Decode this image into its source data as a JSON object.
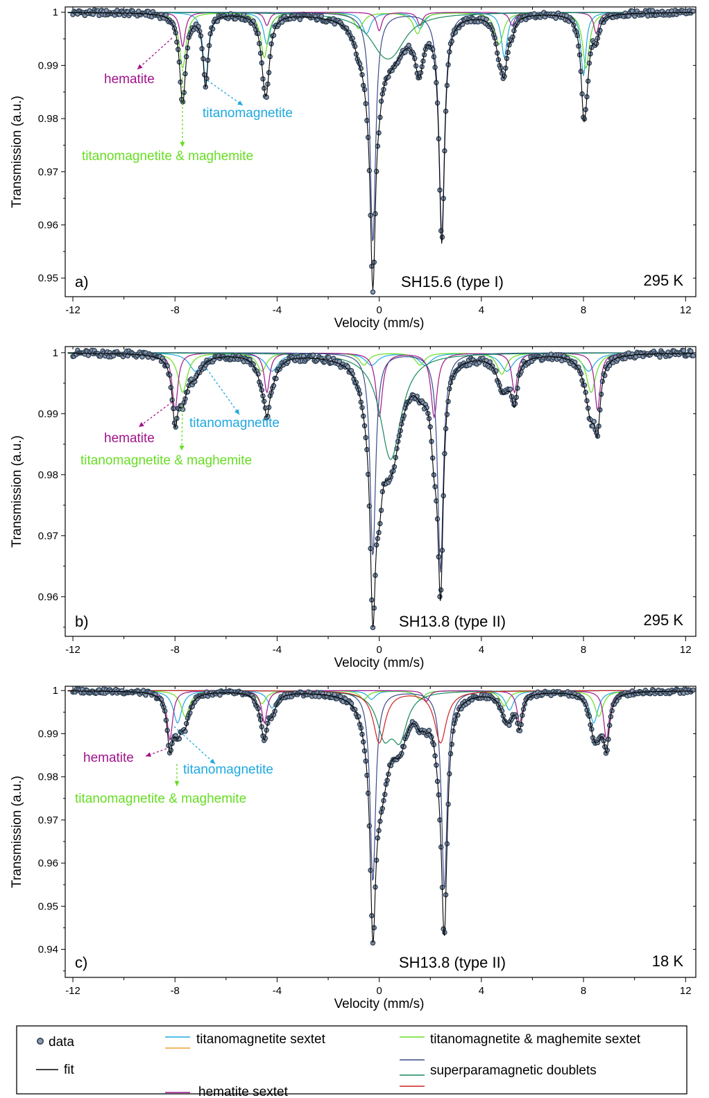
{
  "colors": {
    "data": "#2c3e50",
    "fit": "#000000",
    "titanomagnetite": "#1fa8e0",
    "titanomagnetite_alt": "#f0a030",
    "titanomaghemite": "#66dd22",
    "hematite": "#a0148c",
    "sp_blue": "#3a4a8a",
    "sp_green": "#168a5a",
    "sp_red": "#cc2020"
  },
  "legend": {
    "data": "data",
    "fit": "fit",
    "titanomagnetite": "titanomagnetite sextet",
    "titanomaghemite": "titanomagnetite & maghemite sextet",
    "hematite": "hematite sextet",
    "superparamagnetic": "superparamagnetic doublets"
  },
  "chart_data": [
    {
      "type": "line",
      "panel_label": "a)",
      "sample": "SH15.6 (type I)",
      "temperature": "295 K",
      "xlabel": "Velocity (mm/s)",
      "ylabel": "Transmission (a.u.)",
      "xlim": [
        -12.3,
        12.4
      ],
      "ylim": [
        0.9465,
        1.001
      ],
      "xticks": [
        -12,
        -8,
        -4,
        0,
        4,
        8,
        12
      ],
      "yticks": [
        1,
        0.99,
        0.98,
        0.97,
        0.96,
        0.95
      ],
      "ytick_labels": [
        "1",
        "0.99",
        "0.98",
        "0.97",
        "0.96",
        "0.95"
      ],
      "annotations": [
        {
          "text": "hematite",
          "color_key": "hematite"
        },
        {
          "text": "titanomagnetite",
          "color_key": "titanomagnetite"
        },
        {
          "text": "titanomagnetite & maghemite",
          "color_key": "titanomaghemite"
        }
      ],
      "components": [
        {
          "color_key": "titanomagnetite",
          "lines": [
            [
              -6.8,
              0.0135,
              0.12
            ],
            [
              -4.4,
              0.006,
              0.16
            ],
            [
              -0.5,
              0.004,
              0.2
            ],
            [
              1.6,
              0.003,
              0.2
            ],
            [
              4.9,
              0.0085,
              0.14
            ],
            [
              8.0,
              0.012,
              0.12
            ]
          ]
        },
        {
          "color_key": "titanomaghemite",
          "lines": [
            [
              -7.7,
              0.0105,
              0.16
            ],
            [
              -4.5,
              0.0085,
              0.17
            ],
            [
              -0.8,
              0.003,
              0.22
            ],
            [
              1.5,
              0.004,
              0.2
            ],
            [
              4.7,
              0.006,
              0.2
            ],
            [
              8.1,
              0.0105,
              0.16
            ]
          ]
        },
        {
          "color_key": "hematite",
          "lines": [
            [
              -7.7,
              0.0065,
              0.12
            ],
            [
              -4.4,
              0.0025,
              0.12
            ],
            [
              0.0,
              0.0035,
              0.12
            ],
            [
              1.6,
              0.0025,
              0.12
            ],
            [
              5.2,
              0.0025,
              0.12
            ],
            [
              8.5,
              0.004,
              0.12
            ]
          ]
        },
        {
          "color_key": "sp_blue",
          "lines": [
            [
              -0.25,
              0.0435,
              0.13
            ],
            [
              2.45,
              0.042,
              0.13
            ]
          ]
        },
        {
          "color_key": "sp_green",
          "lines": [
            [
              0.2,
              0.0065,
              0.75
            ],
            [
              0.6,
              0.003,
              0.6
            ]
          ]
        }
      ]
    },
    {
      "type": "line",
      "panel_label": "b)",
      "sample": "SH13.8 (type II)",
      "temperature": "295 K",
      "xlabel": "Velocity (mm/s)",
      "ylabel": "Transmission (a.u.)",
      "xlim": [
        -12.3,
        12.4
      ],
      "ylim": [
        0.9535,
        1.001
      ],
      "xticks": [
        -12,
        -8,
        -4,
        0,
        4,
        8,
        12
      ],
      "yticks": [
        1,
        0.99,
        0.98,
        0.97,
        0.96
      ],
      "ytick_labels": [
        "1",
        "0.99",
        "0.98",
        "0.97",
        "0.96"
      ],
      "annotations": [
        {
          "text": "hematite",
          "color_key": "hematite"
        },
        {
          "text": "titanomagnetite",
          "color_key": "titanomagnetite"
        },
        {
          "text": "titanomagnetite & maghemite",
          "color_key": "titanomaghemite"
        }
      ],
      "components": [
        {
          "color_key": "titanomagnetite",
          "lines": [
            [
              -7.2,
              0.003,
              0.3
            ],
            [
              -4.2,
              0.003,
              0.3
            ],
            [
              -0.3,
              0.002,
              0.3
            ],
            [
              1.8,
              0.002,
              0.3
            ],
            [
              5.0,
              0.003,
              0.3
            ],
            [
              8.2,
              0.003,
              0.3
            ]
          ]
        },
        {
          "color_key": "titanomaghemite",
          "lines": [
            [
              -7.7,
              0.0065,
              0.22
            ],
            [
              -4.6,
              0.003,
              0.22
            ],
            [
              -0.6,
              0.002,
              0.22
            ],
            [
              1.6,
              0.002,
              0.22
            ],
            [
              4.8,
              0.0035,
              0.22
            ],
            [
              8.3,
              0.0065,
              0.22
            ]
          ]
        },
        {
          "color_key": "hematite",
          "lines": [
            [
              -8.0,
              0.0095,
              0.13
            ],
            [
              -4.4,
              0.0065,
              0.13
            ],
            [
              0.0,
              0.0105,
              0.15
            ],
            [
              2.15,
              0.0105,
              0.15
            ],
            [
              5.3,
              0.0065,
              0.13
            ],
            [
              8.55,
              0.0095,
              0.13
            ]
          ]
        },
        {
          "color_key": "sp_blue",
          "lines": [
            [
              -0.25,
              0.0335,
              0.13
            ],
            [
              2.4,
              0.036,
              0.13
            ]
          ]
        },
        {
          "color_key": "sp_green",
          "lines": [
            [
              0.45,
              0.0175,
              0.5
            ]
          ]
        }
      ]
    },
    {
      "type": "line",
      "panel_label": "c)",
      "sample": "SH13.8 (type II)",
      "temperature": "18 K",
      "xlabel": "Velocity (mm/s)",
      "ylabel": "Transmission (a.u.)",
      "xlim": [
        -12.3,
        12.4
      ],
      "ylim": [
        0.9335,
        1.001
      ],
      "xticks": [
        -12,
        -8,
        -4,
        0,
        4,
        8,
        12
      ],
      "yticks": [
        1,
        0.99,
        0.98,
        0.97,
        0.96,
        0.95,
        0.94
      ],
      "ytick_labels": [
        "1",
        "0.99",
        "0.98",
        "0.97",
        "0.96",
        "0.95",
        "0.94"
      ],
      "annotations": [
        {
          "text": "hematite",
          "color_key": "hematite"
        },
        {
          "text": "titanomagnetite",
          "color_key": "titanomagnetite"
        },
        {
          "text": "titanomagnetite & maghemite",
          "color_key": "titanomaghemite"
        }
      ],
      "components": [
        {
          "color_key": "titanomagnetite",
          "lines": [
            [
              -7.9,
              0.0075,
              0.2
            ],
            [
              -4.2,
              0.004,
              0.2
            ],
            [
              -0.3,
              0.002,
              0.2
            ],
            [
              1.6,
              0.002,
              0.2
            ],
            [
              5.1,
              0.0045,
              0.2
            ],
            [
              8.4,
              0.0075,
              0.2
            ]
          ]
        },
        {
          "color_key": "titanomaghemite",
          "lines": [
            [
              -7.6,
              0.006,
              0.2
            ],
            [
              -4.6,
              0.003,
              0.2
            ],
            [
              -0.6,
              0.002,
              0.2
            ],
            [
              1.6,
              0.002,
              0.2
            ],
            [
              4.9,
              0.0035,
              0.2
            ],
            [
              8.6,
              0.006,
              0.2
            ]
          ]
        },
        {
          "color_key": "hematite",
          "lines": [
            [
              -8.2,
              0.0115,
              0.13
            ],
            [
              -4.5,
              0.0075,
              0.13
            ],
            [
              1.85,
              0.0025,
              0.13
            ],
            [
              5.5,
              0.0075,
              0.13
            ],
            [
              8.9,
              0.0115,
              0.13
            ]
          ]
        },
        {
          "color_key": "sp_blue",
          "lines": [
            [
              -0.25,
              0.0445,
              0.13
            ],
            [
              2.55,
              0.0465,
              0.13
            ]
          ]
        },
        {
          "color_key": "sp_green",
          "lines": [
            [
              0.2,
              0.0095,
              0.35
            ],
            [
              0.8,
              0.01,
              0.35
            ]
          ]
        },
        {
          "color_key": "sp_red",
          "lines": [
            [
              0.0,
              0.012,
              0.28
            ],
            [
              2.4,
              0.012,
              0.28
            ]
          ]
        }
      ]
    }
  ]
}
